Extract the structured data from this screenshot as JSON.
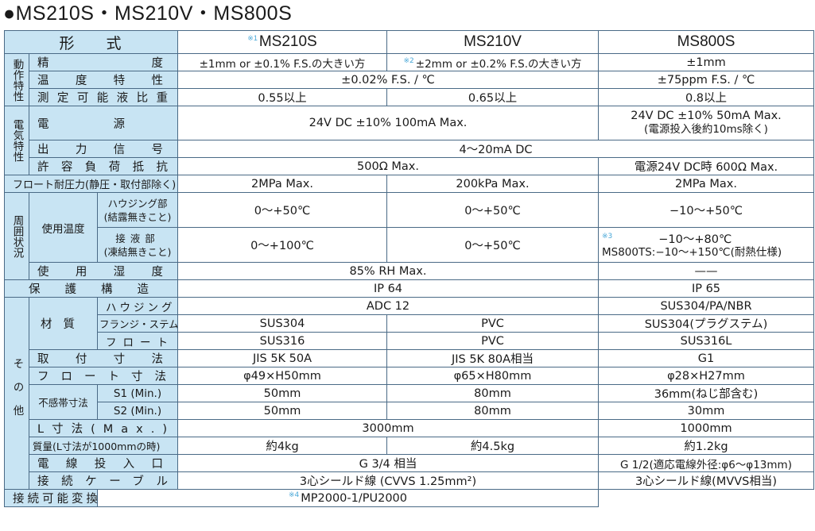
{
  "title": "●MS210S・MS210V・MS800S",
  "header": {
    "label": "形式",
    "models": [
      "MS210S",
      "MS210V",
      "MS800S"
    ],
    "note_ms210s": "※1"
  },
  "categories": {
    "operating": "動作特性",
    "electrical": "電気特性",
    "environment": "周囲状況",
    "other": "その他"
  },
  "rows": {
    "accuracy": {
      "label": "精度",
      "ms210s": "±1mm or ±0.1% F.S.の大きい方",
      "ms210v_note": "※2",
      "ms210v": "±2mm or ±0.2% F.S.の大きい方",
      "ms800s": "±1mm"
    },
    "temp_char": {
      "label": "温度特性",
      "ms210": "±0.02% F.S. / ℃",
      "ms800s": "±75ppm F.S. / ℃"
    },
    "gravity": {
      "label": "測定可能液比重",
      "ms210s": "0.55以上",
      "ms210v": "0.65以上",
      "ms800s": "0.8以上"
    },
    "power": {
      "label": "電源",
      "ms210": "24V DC ±10% 100mA Max.",
      "ms800s_1": "24V DC ±10% 50mA Max.",
      "ms800s_2": "(電源投入後約10ms除く)"
    },
    "output": {
      "label": "出力信号",
      "all": "4～20mA DC"
    },
    "load": {
      "label": "許容負荷抵抗",
      "ms210": "500Ω Max.",
      "ms800s": "電源24V DC時 600Ω Max."
    },
    "float_pressure": {
      "label": "フロート耐圧力(静圧・取付部除く)",
      "ms210s": "2MPa Max.",
      "ms210v": "200kPa Max.",
      "ms800s": "2MPa Max."
    },
    "temp_range": {
      "label": "使用温度",
      "housing": {
        "label": "ハウジング部",
        "label2": "(結露無きこと)",
        "ms210s": "0～+50℃",
        "ms210v": "0～+50℃",
        "ms800s": "−10～+50℃"
      },
      "wetted": {
        "label": "接液部",
        "label2": "(凍結無きこと)",
        "ms210s": "0～+100℃",
        "ms210v": "0～+50℃",
        "ms800s_note": "※3",
        "ms800s_1": "−10～+80℃",
        "ms800s_2": "MS800TS:−10～+150℃(耐熱仕様)"
      }
    },
    "humidity": {
      "label": "使用湿度",
      "ms210": "85% RH Max.",
      "ms800s": "——"
    },
    "protection": {
      "label": "保護構造",
      "ms210": "IP 64",
      "ms800s": "IP 65"
    },
    "material": {
      "label": "材質",
      "housing": {
        "label": "ハウジング",
        "ms210": "ADC 12",
        "ms800s": "SUS304/PA/NBR"
      },
      "flange": {
        "label": "フランジ・ステム",
        "ms210s": "SUS304",
        "ms210v": "PVC",
        "ms800s": "SUS304(プラグステム)"
      },
      "float": {
        "label": "フロート",
        "ms210s": "SUS316",
        "ms210v": "PVC",
        "ms800s": "SUS316L"
      }
    },
    "mounting": {
      "label": "取付寸法",
      "ms210s": "JIS 5K 50A",
      "ms210v": "JIS 5K 80A相当",
      "ms800s": "G1"
    },
    "float_size": {
      "label": "フロート寸法",
      "ms210s": "φ49×H50mm",
      "ms210v": "φ65×H80mm",
      "ms800s": "φ28×H27mm"
    },
    "dead_band": {
      "label": "不感帯寸法",
      "s1": {
        "label": "S1 (Min.)",
        "ms210s": "50mm",
        "ms210v": "80mm",
        "ms800s": "36mm(ねじ部含む)"
      },
      "s2": {
        "label": "S2 (Min.)",
        "ms210s": "50mm",
        "ms210v": "80mm",
        "ms800s": "30mm"
      }
    },
    "l_size": {
      "label": "L寸法(Max.)",
      "ms210": "3000mm",
      "ms800s": "1000mm"
    },
    "mass": {
      "label": "質量(L寸法が1000mmの時)",
      "ms210s": "約4kg",
      "ms210v": "約4.5kg",
      "ms800s": "約1.2kg"
    },
    "cable_entry": {
      "label": "電線投入口",
      "ms210": "G 3/4 相当",
      "ms800s": "G 1/2(適応電線外径:φ6～φ13mm)"
    },
    "cable": {
      "label": "接続ケーブル",
      "ms210": "3心シールド線 (CVVS 1.25mm²)",
      "ms800s": "3心シールド線(MVVS相当)"
    },
    "converter": {
      "label": "接続可能変換器",
      "note": "※4",
      "all": "MP2000-1/PU2000"
    }
  }
}
